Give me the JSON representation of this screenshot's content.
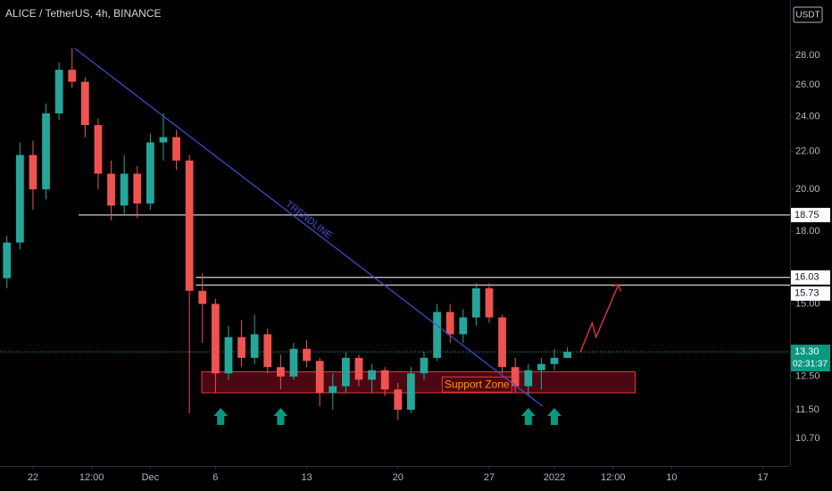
{
  "chart_data": {
    "type": "candlestick",
    "title": "ALICE / TetherUS, 4h, BINANCE",
    "currency": "USDT",
    "log_scale": true,
    "grid": false,
    "up_color": "#26a69a",
    "down_color": "#ef5350",
    "ylim": [
      10.03,
      32.17
    ],
    "yticks": [
      {
        "value": 28,
        "label": "28.00"
      },
      {
        "value": 26,
        "label": "26.00"
      },
      {
        "value": 24,
        "label": "24.00"
      },
      {
        "value": 22,
        "label": "22.00"
      },
      {
        "value": 20,
        "label": "20.00"
      },
      {
        "value": 18,
        "label": "18.00"
      },
      {
        "value": 15,
        "label": "15.00"
      },
      {
        "value": 12.5,
        "label": "12.50"
      },
      {
        "value": 11.5,
        "label": "11.50"
      },
      {
        "value": 10.7,
        "label": "10.70"
      }
    ],
    "xlim": [
      -2.53,
      58.08
    ],
    "xticks": [
      {
        "value": 0,
        "label": "22"
      },
      {
        "value": 4.5,
        "label": "12:00"
      },
      {
        "value": 9,
        "label": "Dec"
      },
      {
        "value": 14,
        "label": "6"
      },
      {
        "value": 21,
        "label": "13"
      },
      {
        "value": 28,
        "label": "20"
      },
      {
        "value": 35,
        "label": "27"
      },
      {
        "value": 40,
        "label": "2022"
      },
      {
        "value": 44.5,
        "label": "12:00"
      },
      {
        "value": 49,
        "label": "10"
      },
      {
        "value": 56,
        "label": "17"
      }
    ],
    "x": [
      -2,
      -1,
      0,
      1,
      2,
      3,
      4,
      5,
      6,
      7,
      8,
      9,
      10,
      11,
      12,
      13,
      14,
      15,
      16,
      17,
      18,
      19,
      20,
      21,
      22,
      23,
      24,
      25,
      26,
      27,
      28,
      29,
      30,
      31,
      32,
      33,
      34,
      35,
      36,
      37,
      38,
      39,
      40,
      41
    ],
    "open": [
      16.0,
      17.5,
      21.8,
      20.0,
      24.2,
      27.0,
      26.2,
      23.5,
      20.8,
      19.2,
      20.8,
      19.3,
      22.5,
      22.8,
      21.5,
      15.5,
      15.0,
      12.6,
      13.8,
      13.1,
      13.9,
      12.8,
      12.5,
      13.4,
      13.0,
      12.0,
      12.2,
      13.1,
      12.4,
      12.7,
      12.1,
      11.5,
      12.6,
      13.1,
      14.7,
      13.9,
      14.5,
      15.6,
      14.5,
      12.8,
      12.2,
      12.7,
      12.9,
      13.1
    ],
    "high": [
      17.8,
      22.5,
      22.6,
      24.8,
      27.5,
      28.5,
      26.5,
      23.9,
      21.5,
      21.8,
      21.2,
      23.0,
      24.2,
      23.2,
      21.8,
      16.2,
      15.2,
      14.2,
      14.4,
      14.6,
      14.1,
      13.2,
      13.6,
      13.7,
      13.1,
      12.6,
      13.3,
      13.2,
      12.9,
      12.8,
      12.3,
      12.8,
      13.3,
      15.0,
      15.0,
      14.8,
      15.8,
      15.8,
      14.6,
      13.1,
      12.9,
      13.1,
      13.4,
      13.45
    ],
    "low": [
      15.6,
      17.2,
      19.0,
      19.5,
      23.8,
      25.8,
      22.8,
      20.0,
      18.5,
      18.8,
      18.6,
      19.0,
      21.5,
      21.0,
      11.4,
      13.6,
      12.0,
      12.4,
      12.8,
      12.9,
      12.6,
      12.1,
      12.4,
      12.8,
      11.6,
      11.5,
      12.0,
      12.2,
      12.0,
      11.9,
      11.2,
      11.4,
      12.4,
      13.0,
      13.6,
      13.6,
      14.2,
      14.3,
      12.6,
      12.0,
      11.9,
      12.1,
      12.7,
      13.1
    ],
    "close": [
      17.5,
      21.8,
      20.0,
      24.2,
      27.0,
      26.2,
      23.5,
      20.8,
      19.2,
      20.8,
      19.3,
      22.5,
      22.8,
      21.5,
      15.5,
      15.0,
      12.6,
      13.8,
      13.1,
      13.9,
      12.8,
      12.5,
      13.4,
      13.0,
      12.0,
      12.2,
      13.1,
      12.4,
      12.7,
      12.1,
      11.5,
      12.6,
      13.1,
      14.7,
      13.9,
      14.5,
      15.6,
      14.5,
      12.8,
      12.2,
      12.7,
      12.9,
      13.1,
      13.3
    ],
    "levels": [
      {
        "value": 18.75,
        "from": 3.5
      },
      {
        "value": 16.03,
        "from": 12.5
      },
      {
        "value": 15.73,
        "from": 12.5
      }
    ],
    "last_price": {
      "value": 13.3,
      "label": "13.30"
    },
    "countdown": "02:31:37",
    "trendline": {
      "label": "TRENDLINE",
      "x": [
        3.2,
        39.1
      ],
      "y": [
        28.5,
        11.6
      ]
    },
    "support_zone": {
      "label": "Support Zone",
      "x": [
        12.95,
        46.2
      ],
      "y": [
        12.0,
        12.65
      ]
    },
    "arrows_x": [
      14.4,
      19.0,
      38.0,
      40.0
    ],
    "arrows_y": 11.55,
    "projection": {
      "x": [
        42.0,
        42.9,
        43.2,
        44.9
      ],
      "y": [
        13.3,
        14.3,
        13.8,
        15.73
      ]
    }
  }
}
